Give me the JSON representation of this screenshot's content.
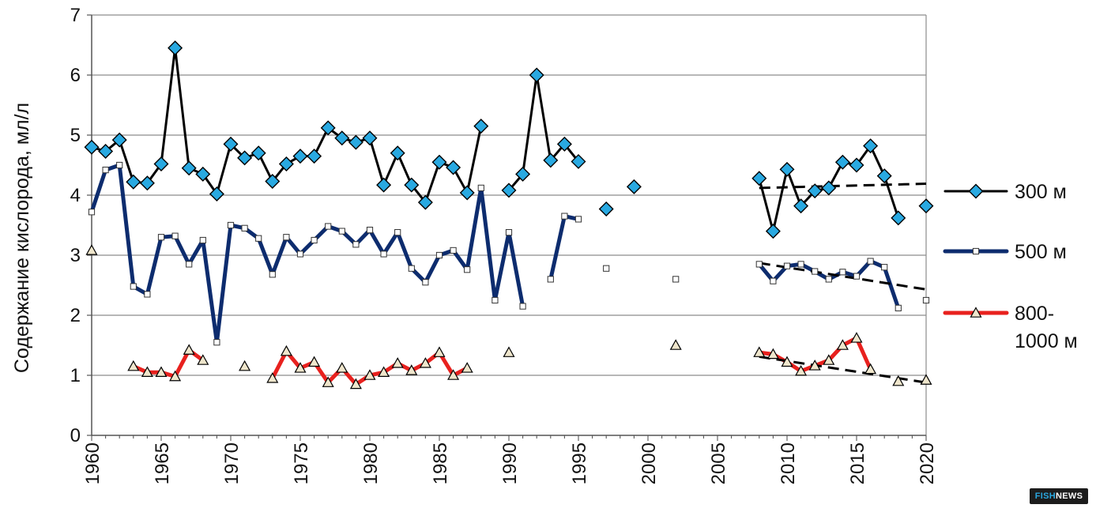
{
  "chart_data": {
    "type": "line",
    "ylabel": "Содержание кислорода, мл/л",
    "xlabel": "",
    "xlim": [
      1960,
      2020
    ],
    "ylim": [
      0,
      7
    ],
    "grid": true,
    "legend_position": "right",
    "x_ticks": [
      "1960",
      "1965",
      "1970",
      "1975",
      "1980",
      "1985",
      "1990",
      "1995",
      "2000",
      "2005",
      "2010",
      "2015",
      "2020"
    ],
    "y_ticks": [
      "0",
      "1",
      "2",
      "3",
      "4",
      "5",
      "6",
      "7"
    ],
    "x": [
      1960,
      1961,
      1962,
      1963,
      1964,
      1965,
      1966,
      1967,
      1968,
      1969,
      1970,
      1971,
      1972,
      1973,
      1974,
      1975,
      1976,
      1977,
      1978,
      1979,
      1980,
      1981,
      1982,
      1983,
      1984,
      1985,
      1986,
      1987,
      1988,
      1989,
      1990,
      1991,
      1992,
      1993,
      1994,
      1995,
      1996,
      1997,
      1998,
      1999,
      2000,
      2001,
      2002,
      2003,
      2004,
      2005,
      2006,
      2007,
      2008,
      2009,
      2010,
      2011,
      2012,
      2013,
      2014,
      2015,
      2016,
      2017,
      2018,
      2019,
      2020
    ],
    "series": [
      {
        "name": "300 м",
        "color": "#000000",
        "marker": "diamond",
        "marker_fill": "#29a9e1",
        "line_width": 3,
        "values": [
          4.8,
          4.73,
          4.92,
          4.22,
          4.2,
          4.52,
          6.45,
          4.45,
          4.35,
          4.02,
          4.85,
          4.62,
          4.7,
          4.23,
          4.52,
          4.65,
          4.65,
          5.12,
          4.95,
          4.88,
          4.95,
          4.17,
          4.7,
          4.17,
          3.88,
          4.55,
          4.46,
          4.04,
          5.15,
          null,
          4.08,
          4.35,
          6.0,
          4.58,
          4.85,
          4.56,
          null,
          3.77,
          null,
          4.14,
          null,
          null,
          null,
          null,
          null,
          null,
          null,
          null,
          4.28,
          3.4,
          4.43,
          3.82,
          4.07,
          4.12,
          4.55,
          4.5,
          4.82,
          4.32,
          3.62,
          null,
          3.82
        ]
      },
      {
        "name": "500 м",
        "color": "#0d2c6e",
        "marker": "square",
        "marker_fill": "#ffffff",
        "line_width": 5,
        "values": [
          3.72,
          4.42,
          4.5,
          2.48,
          2.35,
          3.3,
          3.32,
          2.85,
          3.25,
          1.55,
          3.5,
          3.45,
          3.28,
          2.68,
          3.3,
          3.02,
          3.25,
          3.48,
          3.4,
          3.18,
          3.42,
          3.02,
          3.38,
          2.78,
          2.55,
          3.0,
          3.08,
          2.76,
          4.12,
          2.25,
          3.38,
          2.15,
          null,
          2.6,
          3.65,
          3.6,
          null,
          2.78,
          null,
          null,
          null,
          null,
          2.6,
          null,
          null,
          null,
          null,
          null,
          2.85,
          2.57,
          2.82,
          2.85,
          2.73,
          2.6,
          2.72,
          2.65,
          2.9,
          2.8,
          2.12,
          null,
          2.25
        ]
      },
      {
        "name": "800-1000 м",
        "color": "#e8211e",
        "marker": "triangle",
        "marker_fill": "#efe6cc",
        "line_width": 5,
        "values": [
          3.08,
          null,
          null,
          1.15,
          1.05,
          1.05,
          0.98,
          1.42,
          1.25,
          null,
          null,
          1.15,
          null,
          0.95,
          1.4,
          1.12,
          1.22,
          0.88,
          1.12,
          0.85,
          1.0,
          1.05,
          1.2,
          1.08,
          1.2,
          1.38,
          1.0,
          1.12,
          null,
          null,
          1.38,
          null,
          null,
          null,
          null,
          null,
          null,
          null,
          null,
          null,
          null,
          null,
          1.5,
          null,
          null,
          null,
          null,
          null,
          1.38,
          1.35,
          1.22,
          1.07,
          1.16,
          1.25,
          1.5,
          1.62,
          1.1,
          null,
          0.9,
          null,
          0.92
        ]
      }
    ],
    "trend_lines": [
      {
        "series": "300 м",
        "x": [
          2008,
          2020
        ],
        "y": [
          4.12,
          4.19
        ]
      },
      {
        "series": "500 м",
        "x": [
          2008,
          2020
        ],
        "y": [
          2.87,
          2.43
        ]
      },
      {
        "series": "800-1000 м",
        "x": [
          2008,
          2020
        ],
        "y": [
          1.31,
          0.88
        ]
      }
    ],
    "legend": [
      {
        "line1": "300 м",
        "line2": ""
      },
      {
        "line1": "500 м",
        "line2": ""
      },
      {
        "line1": "800-",
        "line2": "1000 м"
      }
    ]
  },
  "watermark": {
    "part1": "FISH",
    "part2": "NEWS"
  }
}
